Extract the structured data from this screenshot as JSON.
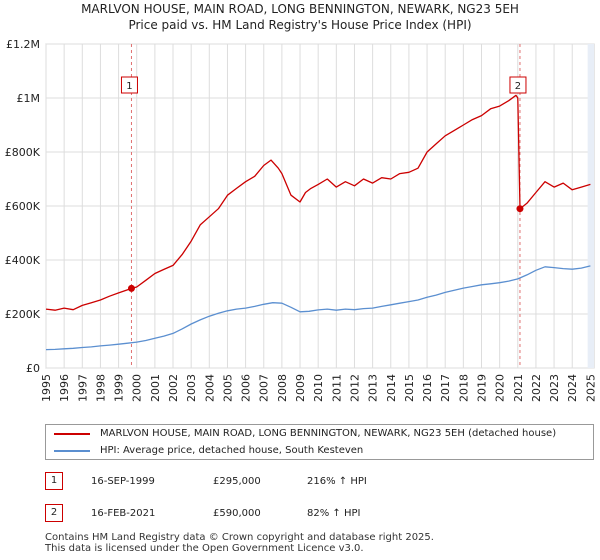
{
  "title": {
    "line1": "MARLVON HOUSE, MAIN ROAD, LONG BENNINGTON, NEWARK, NG23 5EH",
    "line2": "Price paid vs. HM Land Registry's House Price Index (HPI)"
  },
  "colors": {
    "price": "#cc0000",
    "hpi": "#5b8fd0",
    "grid": "#dddddd",
    "marker_line": "#e07070",
    "shade": "#e8eef7"
  },
  "legend": {
    "price_label": "MARLVON HOUSE, MAIN ROAD, LONG BENNINGTON, NEWARK, NG23 5EH (detached house)",
    "hpi_label": "HPI: Average price, detached house, South Kesteven"
  },
  "sales": [
    {
      "num": "1",
      "date": "16-SEP-1999",
      "price": "£295,000",
      "hpi_change": "216% ↑ HPI"
    },
    {
      "num": "2",
      "date": "16-FEB-2021",
      "price": "£590,000",
      "hpi_change": "82% ↑ HPI"
    }
  ],
  "footer": {
    "line1": "Contains HM Land Registry data © Crown copyright and database right 2025.",
    "line2": "This data is licensed under the Open Government Licence v3.0."
  },
  "chart_data": {
    "type": "line",
    "xlim": [
      1995,
      2025.2
    ],
    "ylim": [
      0,
      1200000
    ],
    "y_ticks": [
      {
        "value": 0,
        "label": "£0"
      },
      {
        "value": 200000,
        "label": "£200K"
      },
      {
        "value": 400000,
        "label": "£400K"
      },
      {
        "value": 600000,
        "label": "£600K"
      },
      {
        "value": 800000,
        "label": "£800K"
      },
      {
        "value": 1000000,
        "label": "£1M"
      },
      {
        "value": 1200000,
        "label": "£1.2M"
      }
    ],
    "x_ticks": [
      "1995",
      "1996",
      "1997",
      "1998",
      "1999",
      "2000",
      "2001",
      "2002",
      "2003",
      "2004",
      "2005",
      "2006",
      "2007",
      "2008",
      "2009",
      "2010",
      "2011",
      "2012",
      "2013",
      "2014",
      "2015",
      "2016",
      "2017",
      "2018",
      "2019",
      "2020",
      "2021",
      "2022",
      "2023",
      "2024",
      "2025"
    ],
    "markers": [
      {
        "label": "1",
        "x": 1999.71,
        "y": 295000
      },
      {
        "label": "2",
        "x": 2021.12,
        "y": 590000
      }
    ],
    "series": [
      {
        "name": "MARLVON HOUSE, MAIN ROAD, LONG BENNINGTON, NEWARK, NG23 5EH (detached house)",
        "x": [
          1995.0,
          1995.5,
          1996.0,
          1996.5,
          1997.0,
          1997.5,
          1998.0,
          1998.5,
          1999.0,
          1999.5,
          1999.71,
          2000.0,
          2000.5,
          2001.0,
          2001.5,
          2002.0,
          2002.5,
          2003.0,
          2003.5,
          2004.0,
          2004.5,
          2005.0,
          2005.5,
          2006.0,
          2006.5,
          2007.0,
          2007.4,
          2007.8,
          2008.0,
          2008.5,
          2009.0,
          2009.3,
          2009.6,
          2010.0,
          2010.5,
          2011.0,
          2011.5,
          2012.0,
          2012.5,
          2013.0,
          2013.5,
          2014.0,
          2014.5,
          2015.0,
          2015.5,
          2016.0,
          2016.5,
          2017.0,
          2017.5,
          2018.0,
          2018.5,
          2019.0,
          2019.5,
          2020.0,
          2020.5,
          2020.9,
          2021.0,
          2021.12,
          2021.5,
          2022.0,
          2022.5,
          2023.0,
          2023.5,
          2024.0,
          2024.5,
          2025.0
        ],
        "values": [
          218000,
          214000,
          222000,
          216000,
          232000,
          242000,
          252000,
          266000,
          278000,
          290000,
          295000,
          300000,
          325000,
          350000,
          365000,
          380000,
          420000,
          470000,
          530000,
          560000,
          590000,
          640000,
          665000,
          690000,
          710000,
          750000,
          770000,
          740000,
          720000,
          640000,
          615000,
          650000,
          665000,
          680000,
          700000,
          670000,
          690000,
          675000,
          700000,
          685000,
          705000,
          700000,
          720000,
          725000,
          740000,
          800000,
          830000,
          860000,
          880000,
          900000,
          920000,
          935000,
          960000,
          970000,
          990000,
          1010000,
          1000000,
          590000,
          610000,
          650000,
          690000,
          670000,
          685000,
          660000,
          670000,
          680000
        ]
      },
      {
        "name": "HPI: Average price, detached house, South Kesteven",
        "x": [
          1995.0,
          1995.5,
          1996.0,
          1996.5,
          1997.0,
          1997.5,
          1998.0,
          1998.5,
          1999.0,
          1999.5,
          2000.0,
          2000.5,
          2001.0,
          2001.5,
          2002.0,
          2002.5,
          2003.0,
          2003.5,
          2004.0,
          2004.5,
          2005.0,
          2005.5,
          2006.0,
          2006.5,
          2007.0,
          2007.5,
          2008.0,
          2008.5,
          2009.0,
          2009.5,
          2010.0,
          2010.5,
          2011.0,
          2011.5,
          2012.0,
          2012.5,
          2013.0,
          2013.5,
          2014.0,
          2014.5,
          2015.0,
          2015.5,
          2016.0,
          2016.5,
          2017.0,
          2017.5,
          2018.0,
          2018.5,
          2019.0,
          2019.5,
          2020.0,
          2020.5,
          2021.0,
          2021.5,
          2022.0,
          2022.5,
          2023.0,
          2023.5,
          2024.0,
          2024.5,
          2025.0
        ],
        "values": [
          68000,
          69000,
          71000,
          73000,
          76000,
          78000,
          82000,
          85000,
          88000,
          92000,
          96000,
          102000,
          110000,
          118000,
          128000,
          145000,
          163000,
          178000,
          192000,
          203000,
          212000,
          218000,
          222000,
          228000,
          236000,
          242000,
          240000,
          225000,
          208000,
          210000,
          215000,
          218000,
          214000,
          218000,
          216000,
          220000,
          222000,
          228000,
          234000,
          240000,
          246000,
          252000,
          262000,
          270000,
          280000,
          288000,
          296000,
          302000,
          308000,
          312000,
          316000,
          322000,
          330000,
          345000,
          362000,
          375000,
          372000,
          368000,
          366000,
          370000,
          378000
        ]
      }
    ]
  }
}
